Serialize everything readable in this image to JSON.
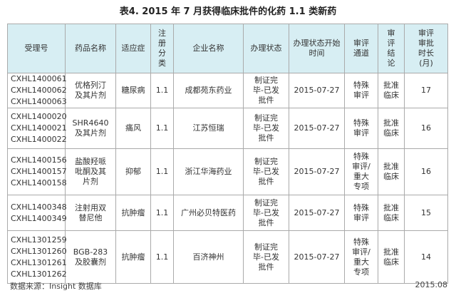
{
  "title": "表4. 2015 年 7 月获得临床批件的化药 1.1 类新药",
  "headers": [
    "受理号",
    "药品名称",
    "适应症",
    "注册分类",
    "企业名称",
    "办理状态",
    "办理状态开始时间",
    "审评通道",
    "审评结论",
    "审评审批时长(月)"
  ],
  "rows": [
    {
      "ids": [
        "CXHL1400061",
        "CXHL1400062",
        "CXHL1400063"
      ],
      "drug": "优格列汀及其片剂",
      "indication": "糖尿病",
      "class": "1.1",
      "company": "成都苑东药业",
      "status": "制证完毕-已发批件",
      "date": "2015-07-27",
      "channel": "特殊审评",
      "conclusion": "批准临床",
      "months": "17"
    },
    {
      "ids": [
        "CXHL1400020",
        "CXHL1400021",
        "CXHL1400022"
      ],
      "drug": "SHR4640及其片剂",
      "indication": "痛风",
      "class": "1.1",
      "company": "江苏恒瑞",
      "status": "制证完毕-已发批件",
      "date": "2015-07-27",
      "channel": "特殊审评",
      "conclusion": "批准临床",
      "months": "16"
    },
    {
      "ids": [
        "CXHL1400156",
        "CXHL1400157",
        "CXHL1400158"
      ],
      "drug": "盐酸羟哌吡酮及其片剂",
      "indication": "抑郁",
      "class": "1.1",
      "company": "浙江华海药业",
      "status": "制证完毕-已发批件",
      "date": "2015-07-27",
      "channel": "特殊审评/重大专项",
      "conclusion": "批准临床",
      "months": "16"
    },
    {
      "ids": [
        "CXHL1400348",
        "CXHL1400349"
      ],
      "drug": "注射用双替尼他",
      "indication": "抗肿瘤",
      "class": "1.1",
      "company": "广州必贝特医药",
      "status": "制证完毕-已发批件",
      "date": "2015-07-27",
      "channel": "特殊审评",
      "conclusion": "批准临床",
      "months": "15"
    },
    {
      "ids": [
        "CXHL1301259",
        "CXHL1301260",
        "CXHL1301261",
        "CXHL1301262"
      ],
      "drug": "BGB-283及胶囊剂",
      "indication": "抗肿瘤",
      "class": "1.1",
      "company": "百济神州",
      "status": "制证完毕-已发批件",
      "date": "2015-07-27",
      "channel": "特殊审评/重大专项",
      "conclusion": "批准临床",
      "months": "14"
    }
  ],
  "footer": {
    "source": "数据来源：Insight 数据库",
    "date": "2015.08"
  }
}
